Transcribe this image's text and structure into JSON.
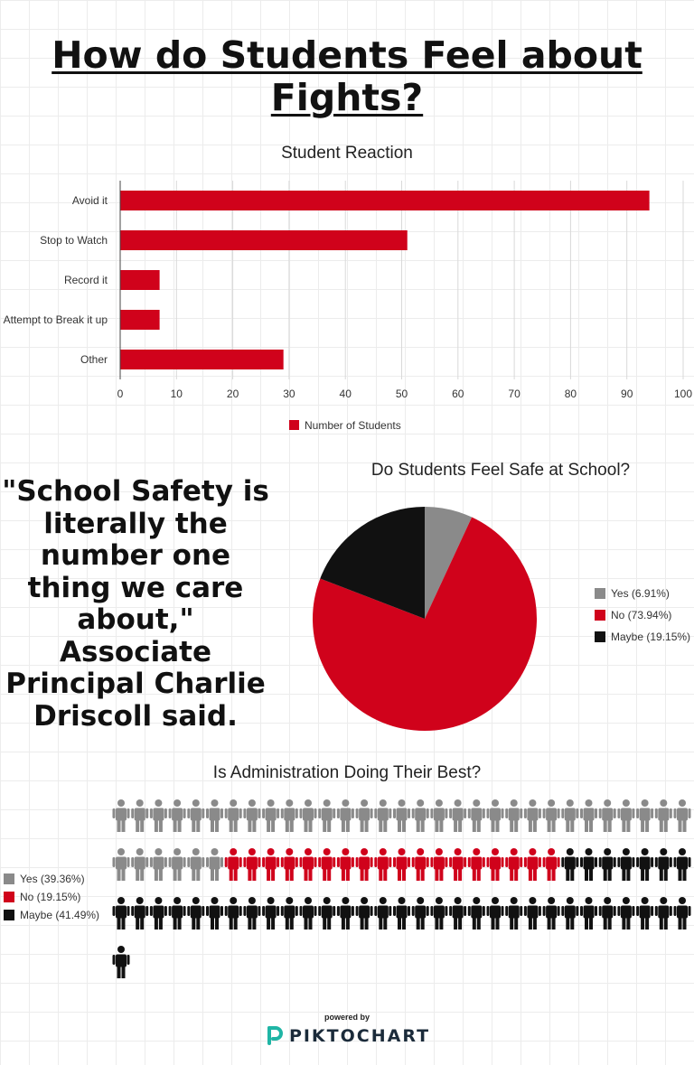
{
  "page": {
    "title_line1": "How do Students Feel about",
    "title_line2": "Fights?",
    "quote": "\"School Safety is literally the number one thing we care about,\" Associate Principal Charlie Driscoll said.",
    "footer": {
      "powered_by": "powered by",
      "brand": "PIKTOCHART",
      "logo_icon": "piktochart-logo-icon"
    }
  },
  "colors": {
    "red": "#d0021b",
    "gray": "#8a8a8a",
    "black": "#111111"
  },
  "chart_data": [
    {
      "type": "bar",
      "orientation": "horizontal",
      "title": "Student Reaction",
      "categories": [
        "Avoid it",
        "Stop to Watch",
        "Record it",
        "Attempt to Break it up",
        "Other"
      ],
      "series": [
        {
          "name": "Number of Students",
          "values": [
            94,
            51,
            7,
            7,
            29
          ],
          "color": "#d0021b"
        }
      ],
      "xlim": [
        0,
        100
      ],
      "xticks": [
        "0",
        "10",
        "20",
        "30",
        "40",
        "50",
        "60",
        "70",
        "80",
        "90",
        "100"
      ],
      "grid": true,
      "legend": "bottom"
    },
    {
      "type": "pie",
      "title": "Do Students Feel Safe at School?",
      "slices": [
        {
          "label": "Yes (6.91%)",
          "value": 6.91,
          "color": "#8a8a8a"
        },
        {
          "label": "No (73.94%)",
          "value": 73.94,
          "color": "#d0021b"
        },
        {
          "label": "Maybe (19.15%)",
          "value": 19.15,
          "color": "#111111"
        }
      ],
      "legend": "right"
    },
    {
      "type": "pictograph",
      "title": "Is Administration Doing Their Best?",
      "icon": "person-icon",
      "series": [
        {
          "label": "Yes (39.36%)",
          "value": 39.36,
          "count": 37,
          "color": "#8a8a8a"
        },
        {
          "label": "No (19.15%)",
          "value": 19.15,
          "count": 18,
          "color": "#d0021b"
        },
        {
          "label": "Maybe (41.49%)",
          "value": 41.49,
          "count": 39,
          "color": "#111111"
        }
      ],
      "legend": "left"
    }
  ]
}
